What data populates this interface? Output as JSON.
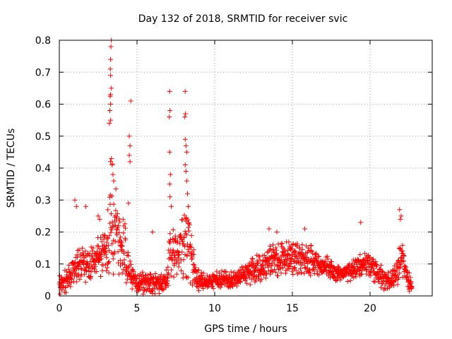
{
  "chart_data": {
    "type": "scatter",
    "title": "Day 132 of 2018, SRMTID for receiver svic",
    "xlabel": "GPS time / hours",
    "ylabel": "SRMTID / TECUs",
    "xlim": [
      0,
      24
    ],
    "ylim": [
      0,
      0.8
    ],
    "xticks": [
      0,
      5,
      10,
      15,
      20
    ],
    "xtick_labels": [
      "0",
      "5",
      "10",
      "15",
      "20"
    ],
    "yticks": [
      0,
      0.1,
      0.2,
      0.3,
      0.4,
      0.5,
      0.6,
      0.7,
      0.8
    ],
    "ytick_labels": [
      "0",
      "0.1",
      "0.2",
      "0.3",
      "0.4",
      "0.5",
      "0.6",
      "0.7",
      "0.8"
    ],
    "grid": true,
    "marker": "+",
    "color": "#ff0000",
    "series": [
      {
        "name": "SRMTID",
        "envelope": {
          "x": [
            0,
            0.5,
            1,
            1.5,
            2,
            2.5,
            3,
            3.2,
            3.4,
            3.6,
            3.8,
            4,
            4.2,
            4.5,
            5,
            5.5,
            6,
            6.5,
            7,
            7.1,
            7.3,
            7.6,
            8,
            8.2,
            8.4,
            8.7,
            9,
            9.5,
            10,
            10.5,
            11,
            11.5,
            12,
            12.5,
            13,
            13.5,
            14,
            14.5,
            15,
            15.5,
            16,
            16.5,
            17,
            17.5,
            18,
            18.5,
            19,
            19.5,
            20,
            20.5,
            21,
            21.5,
            22,
            22.3,
            22.7
          ],
          "center": [
            0.04,
            0.05,
            0.09,
            0.1,
            0.1,
            0.12,
            0.14,
            0.2,
            0.28,
            0.25,
            0.18,
            0.15,
            0.15,
            0.07,
            0.04,
            0.04,
            0.04,
            0.04,
            0.05,
            0.12,
            0.14,
            0.12,
            0.15,
            0.18,
            0.15,
            0.08,
            0.05,
            0.04,
            0.05,
            0.05,
            0.05,
            0.06,
            0.07,
            0.08,
            0.09,
            0.11,
            0.11,
            0.12,
            0.12,
            0.12,
            0.12,
            0.11,
            0.09,
            0.08,
            0.07,
            0.07,
            0.08,
            0.1,
            0.1,
            0.07,
            0.05,
            0.06,
            0.12,
            0.07,
            0.03
          ],
          "spread": [
            0.04,
            0.05,
            0.06,
            0.06,
            0.06,
            0.07,
            0.08,
            0.15,
            0.25,
            0.2,
            0.12,
            0.1,
            0.12,
            0.05,
            0.04,
            0.04,
            0.04,
            0.04,
            0.05,
            0.12,
            0.1,
            0.08,
            0.12,
            0.15,
            0.12,
            0.05,
            0.04,
            0.03,
            0.03,
            0.03,
            0.03,
            0.03,
            0.04,
            0.05,
            0.05,
            0.06,
            0.06,
            0.06,
            0.06,
            0.06,
            0.06,
            0.05,
            0.04,
            0.04,
            0.03,
            0.03,
            0.04,
            0.05,
            0.05,
            0.04,
            0.04,
            0.04,
            0.08,
            0.05,
            0.03
          ]
        },
        "peaks": [
          {
            "x": 3.35,
            "y": 0.8
          },
          {
            "x": 3.32,
            "y": 0.78
          },
          {
            "x": 3.3,
            "y": 0.74
          },
          {
            "x": 3.28,
            "y": 0.71
          },
          {
            "x": 3.3,
            "y": 0.69
          },
          {
            "x": 3.35,
            "y": 0.65
          },
          {
            "x": 3.3,
            "y": 0.63
          },
          {
            "x": 3.27,
            "y": 0.625
          },
          {
            "x": 3.3,
            "y": 0.6
          },
          {
            "x": 3.25,
            "y": 0.58
          },
          {
            "x": 3.3,
            "y": 0.55
          },
          {
            "x": 3.22,
            "y": 0.54
          },
          {
            "x": 3.35,
            "y": 0.43
          },
          {
            "x": 3.4,
            "y": 0.41
          },
          {
            "x": 3.45,
            "y": 0.38
          },
          {
            "x": 3.5,
            "y": 0.36
          },
          {
            "x": 4.6,
            "y": 0.61
          },
          {
            "x": 4.5,
            "y": 0.5
          },
          {
            "x": 4.55,
            "y": 0.47
          },
          {
            "x": 4.5,
            "y": 0.44
          },
          {
            "x": 4.55,
            "y": 0.42
          },
          {
            "x": 4.45,
            "y": 0.29
          },
          {
            "x": 7.1,
            "y": 0.64
          },
          {
            "x": 7.12,
            "y": 0.58
          },
          {
            "x": 7.08,
            "y": 0.56
          },
          {
            "x": 7.1,
            "y": 0.45
          },
          {
            "x": 7.15,
            "y": 0.38
          },
          {
            "x": 7.1,
            "y": 0.35
          },
          {
            "x": 7.12,
            "y": 0.31
          },
          {
            "x": 7.2,
            "y": 0.28
          },
          {
            "x": 8.1,
            "y": 0.64
          },
          {
            "x": 8.12,
            "y": 0.57
          },
          {
            "x": 8.08,
            "y": 0.56
          },
          {
            "x": 8.1,
            "y": 0.49
          },
          {
            "x": 8.15,
            "y": 0.47
          },
          {
            "x": 8.2,
            "y": 0.45
          },
          {
            "x": 8.1,
            "y": 0.41
          },
          {
            "x": 8.15,
            "y": 0.39
          },
          {
            "x": 8.2,
            "y": 0.36
          },
          {
            "x": 8.25,
            "y": 0.32
          },
          {
            "x": 8.3,
            "y": 0.28
          },
          {
            "x": 1,
            "y": 0.3
          },
          {
            "x": 1.1,
            "y": 0.28
          },
          {
            "x": 1.7,
            "y": 0.28
          },
          {
            "x": 2.5,
            "y": 0.25
          },
          {
            "x": 2.6,
            "y": 0.24
          },
          {
            "x": 6,
            "y": 0.2
          },
          {
            "x": 13.5,
            "y": 0.21
          },
          {
            "x": 14,
            "y": 0.2
          },
          {
            "x": 15.8,
            "y": 0.21
          },
          {
            "x": 19.4,
            "y": 0.23
          },
          {
            "x": 21.9,
            "y": 0.27
          },
          {
            "x": 22,
            "y": 0.25
          },
          {
            "x": 21.95,
            "y": 0.24
          }
        ]
      }
    ]
  }
}
